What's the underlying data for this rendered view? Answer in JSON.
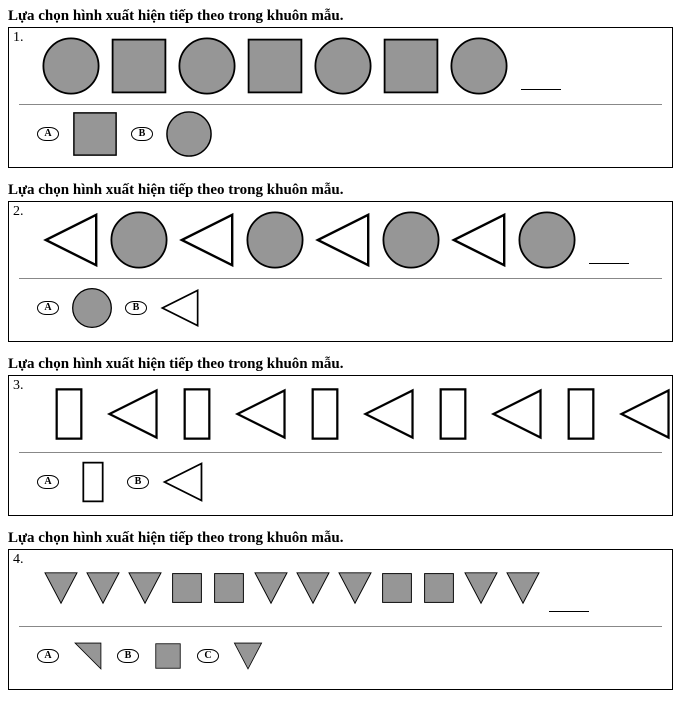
{
  "instruction_text": "Lựa chọn hình xuất hiện tiếp theo trong khuôn mẫu.",
  "colors": {
    "fill_gray": "#969696",
    "fill_white": "#ffffff",
    "stroke_black": "#000000"
  },
  "shape_defs": {
    "circle": {
      "draw": "circle",
      "fill_key": "fill_gray",
      "stroke_key": "stroke_black",
      "stroke_width": 1.5
    },
    "square": {
      "draw": "square",
      "fill_key": "fill_gray",
      "stroke_key": "stroke_black",
      "stroke_width": 1.5
    },
    "triangle_left": {
      "draw": "triangle_left",
      "fill_key": "fill_white",
      "stroke_key": "stroke_black",
      "stroke_width": 2
    },
    "rect_tall": {
      "draw": "rect_tall",
      "fill_key": "fill_white",
      "stroke_key": "stroke_black",
      "stroke_width": 2
    },
    "tri_down": {
      "draw": "tri_down",
      "fill_key": "fill_gray",
      "stroke_key": "stroke_black",
      "stroke_width": 1.2
    },
    "sq_small": {
      "draw": "sq_small",
      "fill_key": "fill_gray",
      "stroke_key": "stroke_black",
      "stroke_width": 1.2
    },
    "half_tri": {
      "draw": "half_tri",
      "fill_key": "fill_gray",
      "stroke_key": "stroke_black",
      "stroke_width": 1.2
    }
  },
  "questions": [
    {
      "number": "1.",
      "pattern_size": 60,
      "option_size": 48,
      "gap_mode": "normal",
      "pattern": [
        "circle",
        "square",
        "circle",
        "square",
        "circle",
        "square",
        "circle"
      ],
      "options": [
        {
          "label": "A",
          "shape": "square"
        },
        {
          "label": "B",
          "shape": "circle"
        }
      ]
    },
    {
      "number": "2.",
      "pattern_size": 60,
      "option_size": 42,
      "gap_mode": "normal",
      "pattern": [
        "triangle_left",
        "circle",
        "triangle_left",
        "circle",
        "triangle_left",
        "circle",
        "triangle_left",
        "circle"
      ],
      "options": [
        {
          "label": "A",
          "shape": "circle"
        },
        {
          "label": "B",
          "shape": "triangle_left"
        }
      ]
    },
    {
      "number": "3.",
      "pattern_size": 56,
      "option_size": 44,
      "gap_mode": "normal",
      "pattern": [
        "rect_tall",
        "triangle_left",
        "rect_tall",
        "triangle_left",
        "rect_tall",
        "triangle_left",
        "rect_tall",
        "triangle_left",
        "rect_tall",
        "triangle_left"
      ],
      "options": [
        {
          "label": "A",
          "shape": "rect_tall"
        },
        {
          "label": "B",
          "shape": "triangle_left"
        }
      ]
    },
    {
      "number": "4.",
      "pattern_size": 40,
      "option_size": 34,
      "gap_mode": "tight",
      "pattern": [
        "tri_down",
        "tri_down",
        "tri_down",
        "sq_small",
        "sq_small",
        "tri_down",
        "tri_down",
        "tri_down",
        "sq_small",
        "sq_small",
        "tri_down",
        "tri_down"
      ],
      "options": [
        {
          "label": "A",
          "shape": "half_tri"
        },
        {
          "label": "B",
          "shape": "sq_small"
        },
        {
          "label": "C",
          "shape": "tri_down"
        }
      ]
    }
  ]
}
